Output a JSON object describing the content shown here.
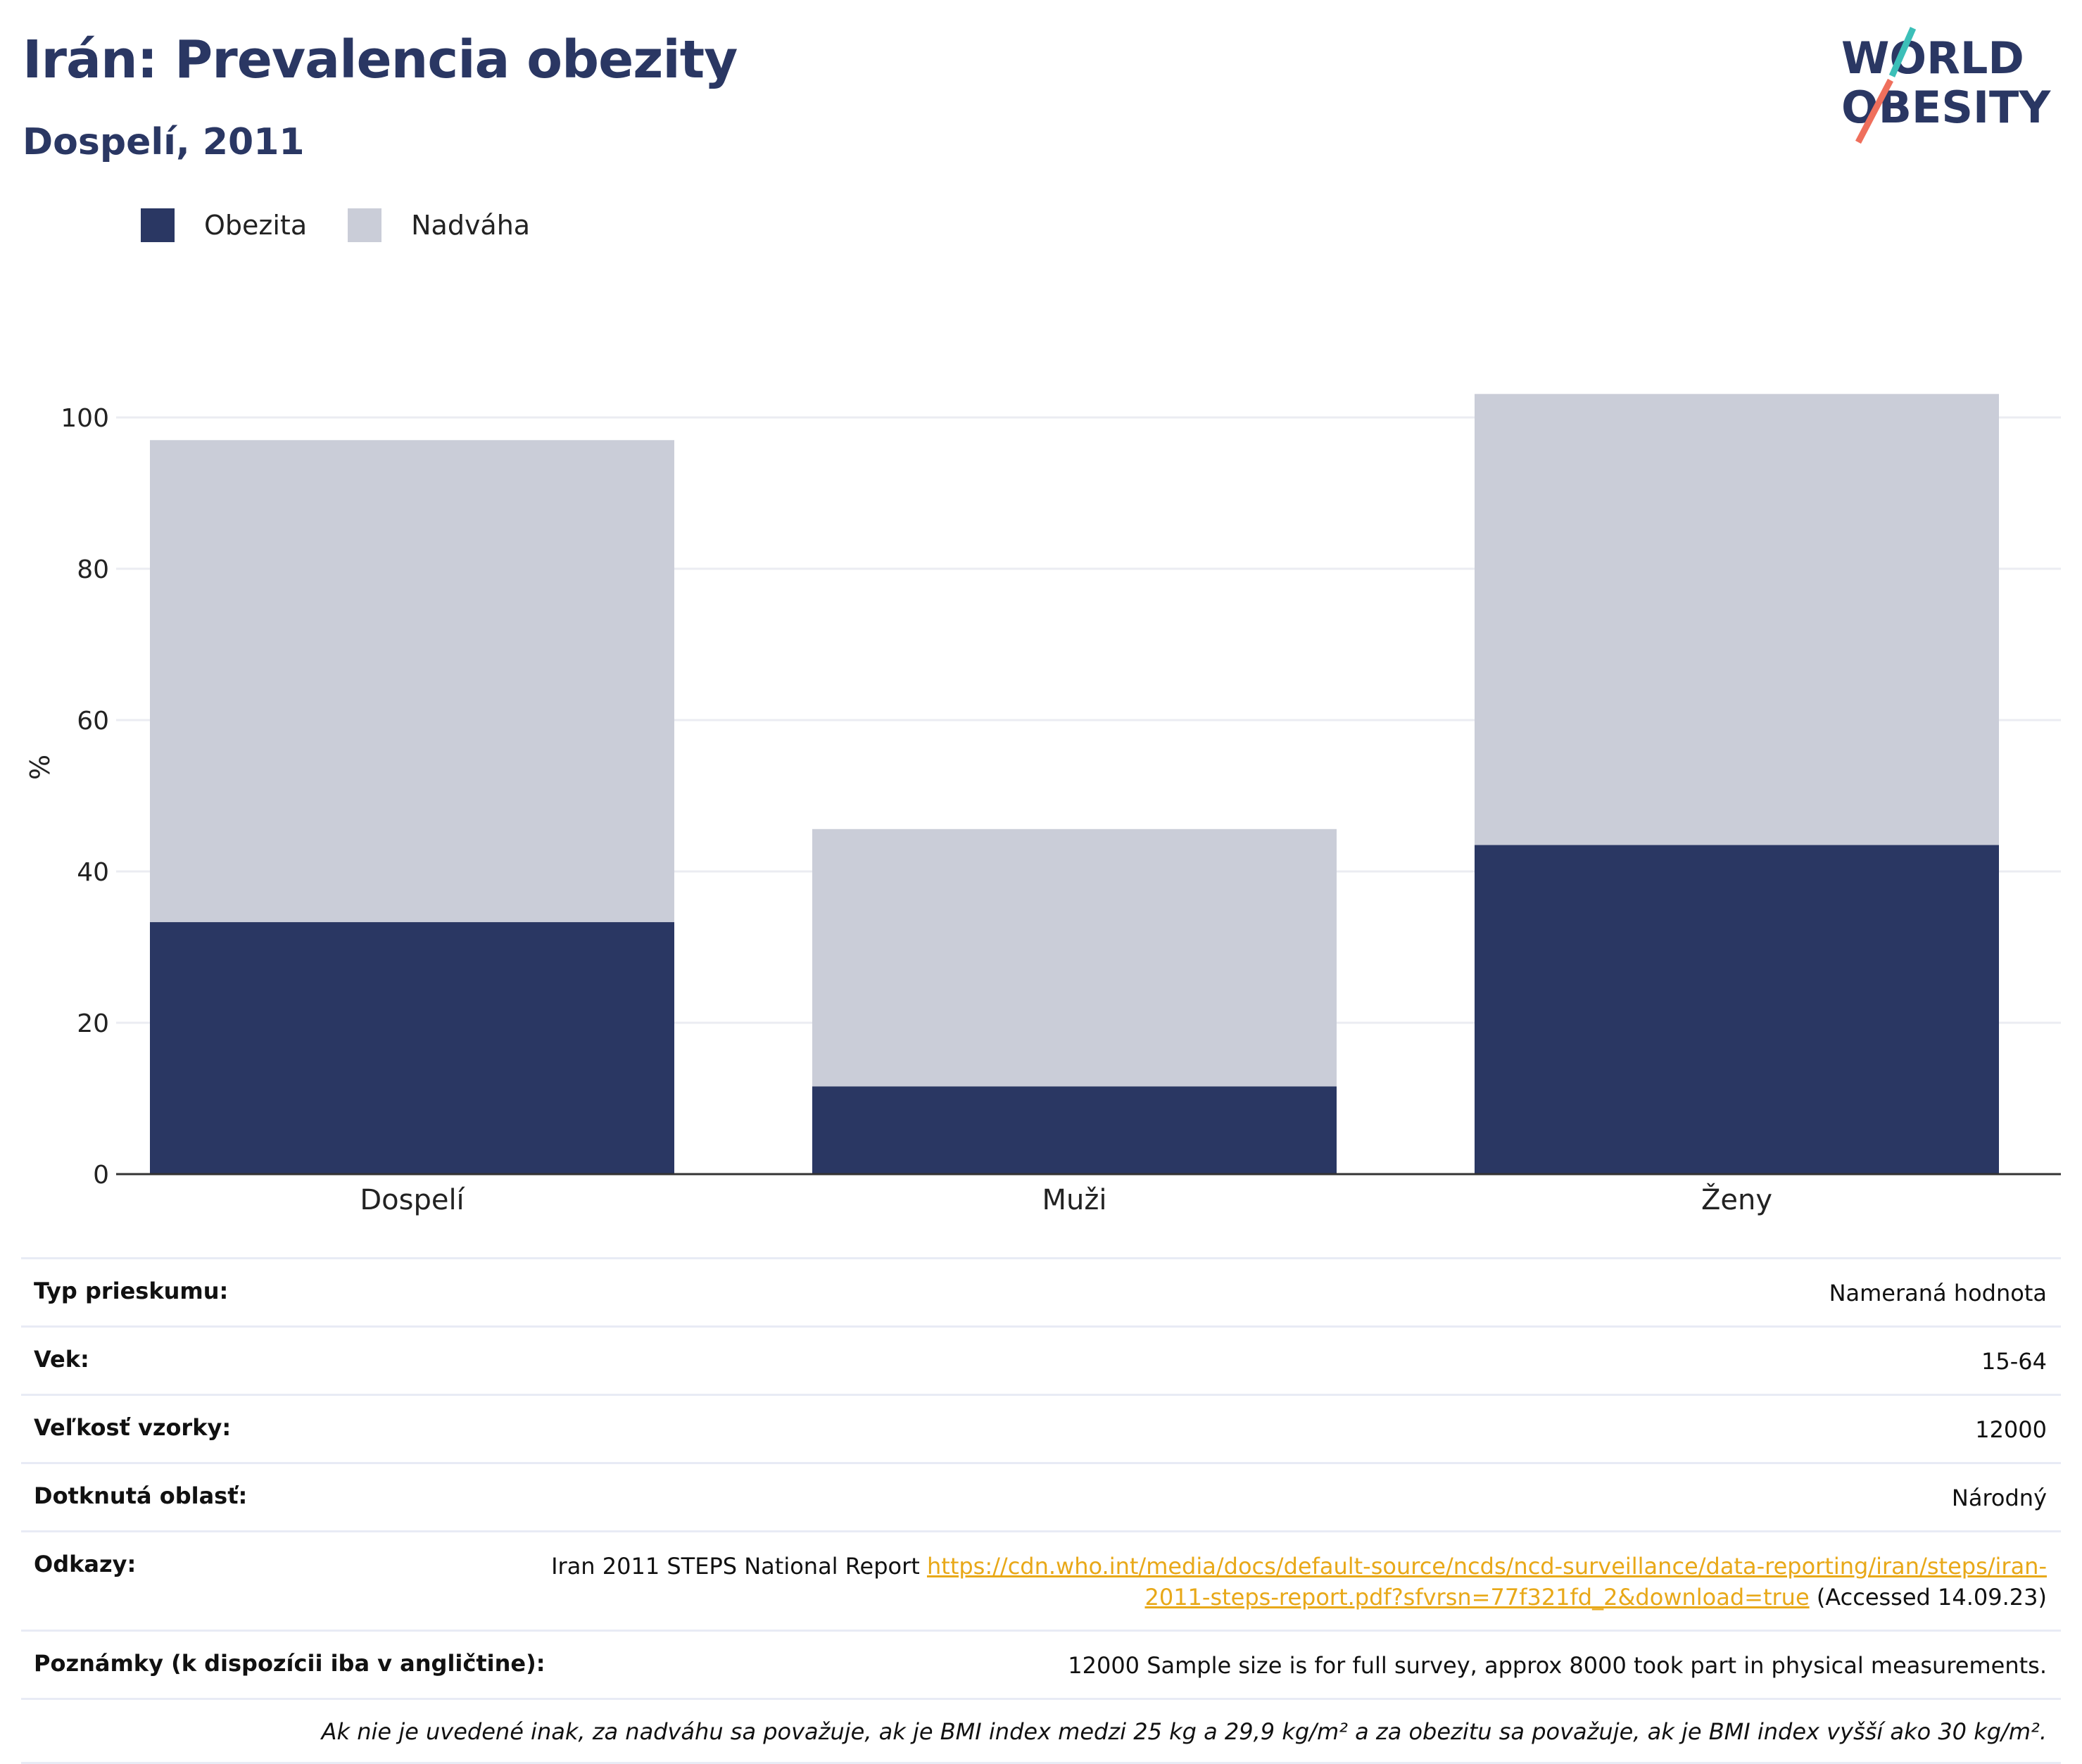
{
  "header": {
    "title": "Irán: Prevalencia obezity",
    "subtitle": "Dospelí, 2011"
  },
  "logo": {
    "line1": "WORLD",
    "line2": "OBESITY"
  },
  "colors": {
    "obesity": "#2a3763",
    "overweight": "#cacdd8",
    "accent": "#e8a818",
    "title": "#2a3763"
  },
  "chart_data": {
    "type": "bar",
    "stacked": true,
    "categories": [
      "Dospelí",
      "Muži",
      "Ženy"
    ],
    "series": [
      {
        "name": "Obezita",
        "values": [
          33.3,
          11.6,
          43.5
        ]
      },
      {
        "name": "Nadváha",
        "values": [
          63.7,
          34.0,
          59.6
        ]
      }
    ],
    "ylabel": "%",
    "ylim": [
      0,
      105
    ],
    "yticks": [
      0,
      20,
      40,
      60,
      80,
      100
    ],
    "grid": true,
    "legend": "top-left"
  },
  "info": {
    "rows": [
      {
        "key": "Typ prieskumu:",
        "value": "Nameraná hodnota"
      },
      {
        "key": "Vek:",
        "value": "15-64"
      },
      {
        "key": "Veľkosť vzorky:",
        "value": "12000"
      },
      {
        "key": "Dotknutá oblasť:",
        "value": "Národný"
      }
    ],
    "refs": {
      "key": "Odkazy:",
      "prefix": "Iran 2011 STEPS National Report",
      "link": "https://cdn.who.int/media/docs/default-source/ncds/ncd-surveillance/data-reporting/iran/steps/iran-2011-steps-report.pdf?sfvrsn=77f321fd_2&download=true",
      "suffix": "(Accessed 14.09.23)"
    },
    "notes": {
      "key": "Poznámky (k dispozícii iba v angličtine):",
      "value": "12000 Sample size is for full survey, approx 8000 took part in physical measurements."
    },
    "footnote": "Ak nie je uvedené inak, za nadváhu sa považuje, ak je BMI index medzi 25 kg a 29,9 kg/m² a za obezitu sa považuje, ak je BMI index vyšší ako 30 kg/m²."
  }
}
